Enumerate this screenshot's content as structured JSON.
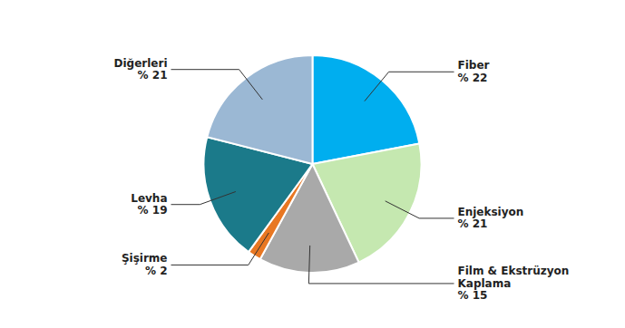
{
  "chart_data": {
    "type": "pie",
    "categories": [
      "Fiber",
      "Enjeksiyon",
      "Film & Ekstrüzyon\nKaplama",
      "Şişirme",
      "Levha",
      "Diğerleri"
    ],
    "values": [
      22,
      21,
      15,
      2,
      19,
      21
    ],
    "value_labels": [
      "% 22",
      "% 21",
      "% 15",
      "% 2",
      "% 19",
      "% 21"
    ],
    "colors": [
      "#00AEEF",
      "#C5E8B0",
      "#A9A9A9",
      "#E87722",
      "#1B7A8A",
      "#9BB8D4"
    ],
    "data_labels": true
  }
}
